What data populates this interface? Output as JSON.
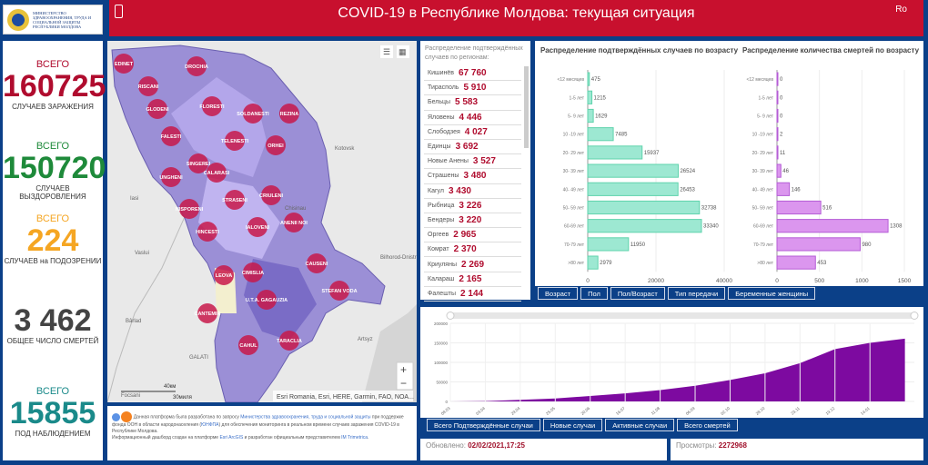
{
  "header": {
    "logo_text": "Министерство здравоохранения, труда и социальной защиты Республики Молдова",
    "title": "COVID-19 в Республике Молдова: текущая ситуация",
    "lang": "Ro",
    "brand_color": "#c8102e",
    "bg_color": "#0b4088"
  },
  "stats": [
    {
      "label1": "ВСЕГО",
      "value": "160725",
      "label2": "СЛУЧАЕВ ЗАРАЖЕНИЯ",
      "color": "#b00c2e"
    },
    {
      "label1": "ВСЕГО",
      "value": "150720",
      "label2": "СЛУЧАЕВ ВЫЗДОРОВЛЕНИЯ",
      "color": "#1e8a3a"
    },
    {
      "label1": "ВСЕГО",
      "value": "224",
      "label2": "СЛУЧАЕВ на ПОДОЗРЕНИИ",
      "color": "#f5a623"
    },
    {
      "label1": "",
      "value": "3 462",
      "label2": "ОБЩЕЕ ЧИСЛО СМЕРТЕЙ",
      "color": "#444444"
    },
    {
      "label1": "ВСЕГО",
      "value": "15855",
      "label2": "ПОД НАБЛЮДЕНИЕМ",
      "color": "#1a8a8a"
    }
  ],
  "map": {
    "districts": [
      "EDINET",
      "DROCHIA",
      "RISCANI",
      "GLODENI",
      "FLORESTI",
      "SOLDANESTI",
      "REZINA",
      "FALESTI",
      "SINGEREI",
      "TELENESTI",
      "ORHEI",
      "UNGHENI",
      "CALARASI",
      "STRASENI",
      "CRIULENI",
      "NISPORENI",
      "HINCESTI",
      "IALOVENI",
      "ANENII NOI",
      "LEOVA",
      "CIMISLIA",
      "CAUSENI",
      "STEFAN VODA",
      "CANTEMIR",
      "U.T.A. GAGAUZIA",
      "TARACLIA",
      "CAHUL"
    ],
    "places": [
      "Kotovsk",
      "Iasi",
      "Vaslui",
      "Bârlad",
      "Artsyz",
      "Bilhorod-Dnistr",
      "GALATI",
      "Focsani",
      "Chisinau"
    ],
    "scale_km": "40км",
    "scale_mi": "30миля",
    "attribution": "Esri Romania, Esri, HERE, Garmin, FAO, NOA...",
    "zoom_in": "+",
    "zoom_out": "−"
  },
  "footer": {
    "text1": "Данная платформа была разработана по запросу ",
    "link1": "Министерства здравоохранения, труда и социальной защиты",
    "text2": " при поддержке фонда ООН в области народонаселения (",
    "link2": "ЮНФПА",
    "text3": ") для обеспечения мониторинга в реальном времени случаев заражения COVID-19 в Республике Молдова.",
    "text4": "Информационный дашборд создан на платформе ",
    "link3": "Esri ArcGIS",
    "text5": " и разработан официальным представителем ",
    "link4": "IM Trimetrica",
    "text6": "."
  },
  "regions": {
    "header": "Распределение подтверждённых случаев по регионам:",
    "items": [
      {
        "name": "Кишинёв",
        "value": "67 760"
      },
      {
        "name": "Тирасполь",
        "value": "5 910"
      },
      {
        "name": "Бельцы",
        "value": "5 583"
      },
      {
        "name": "Яловены",
        "value": "4 446"
      },
      {
        "name": "Слободзея",
        "value": "4 027"
      },
      {
        "name": "Единцы",
        "value": "3 692"
      },
      {
        "name": "Новые Анены",
        "value": "3 527"
      },
      {
        "name": "Страшены",
        "value": "3 480"
      },
      {
        "name": "Кагул",
        "value": "3 430"
      },
      {
        "name": "Рыбница",
        "value": "3 226"
      },
      {
        "name": "Бендеры",
        "value": "3 220"
      },
      {
        "name": "Оргеев",
        "value": "2 965"
      },
      {
        "name": "Комрат",
        "value": "2 370"
      },
      {
        "name": "Криуляны",
        "value": "2 269"
      },
      {
        "name": "Калараш",
        "value": "2 165"
      },
      {
        "name": "Фалешты",
        "value": "2 144"
      }
    ]
  },
  "chart_data": [
    {
      "type": "bar",
      "orientation": "horizontal",
      "title": "Распределение подтверждённых случаев по возрасту",
      "categories": [
        "<12 месяцев",
        "1-5 лет",
        "5- 9 лет",
        "10 -19 лет",
        "20- 29 лет",
        "30- 39 лет",
        "40- 49 лет",
        "50- 59 лет",
        "60-69 лет",
        "70-79 лет",
        ">80 лет"
      ],
      "values": [
        475,
        1215,
        1629,
        7485,
        15937,
        26524,
        26453,
        32738,
        33340,
        11950,
        2979
      ],
      "xlim": [
        0,
        40000
      ],
      "xticks": [
        "0",
        "20000",
        "40000"
      ],
      "color": "#9de8d2",
      "grid": true
    },
    {
      "type": "bar",
      "orientation": "horizontal",
      "title": "Распределение количества смертей по возрасту",
      "categories": [
        "<12 месяцев",
        "1-5 лет",
        "5- 9 лет",
        "10 -19 лет",
        "20- 29 лет",
        "30- 39 лет",
        "40- 49 лет",
        "50- 59 лет",
        "60-69 лет",
        "70-79 лет",
        ">80 лет"
      ],
      "values": [
        0,
        0,
        0,
        2,
        11,
        46,
        146,
        516,
        1308,
        980,
        453
      ],
      "xlim": [
        0,
        1500
      ],
      "xticks": [
        "0",
        "500",
        "1000",
        "1500"
      ],
      "color": "#db96ee",
      "grid": true
    },
    {
      "type": "area",
      "title": "",
      "x": [
        "08.03",
        "03.04",
        "29.04",
        "25.05",
        "20.06",
        "16.07",
        "11.08",
        "06.09",
        "02.10",
        "28.10",
        "23.11",
        "19.12",
        "14.01",
        "02.02"
      ],
      "values": [
        1,
        800,
        4000,
        7500,
        14000,
        20500,
        29000,
        40000,
        55000,
        72000,
        98000,
        134000,
        150000,
        160725
      ],
      "xticks": [
        "08.03",
        "03.04",
        "29.04",
        "25.05",
        "20.06",
        "16.07",
        "11.08",
        "06.09",
        "02.10",
        "28.10",
        "23.11",
        "19.12",
        "14.01"
      ],
      "yticks": [
        "0",
        "50000",
        "100000",
        "150000",
        "200000"
      ],
      "ylim": [
        0,
        200000
      ],
      "color": "#7d0aa0",
      "grid": true
    }
  ],
  "age_tabs": [
    "Возраст",
    "Пол",
    "Пол/Возраст",
    "Тип передачи",
    "Беременные женщины"
  ],
  "timeline_tabs": [
    "Всего Подтверждённые случаи",
    "Новые случаи",
    "Активные случаи",
    "Всего смертей"
  ],
  "updated": {
    "label": "Обновлено:",
    "value": "02/02/2021,17:25"
  },
  "views": {
    "label": "Просмотры:",
    "value": "2272968"
  }
}
